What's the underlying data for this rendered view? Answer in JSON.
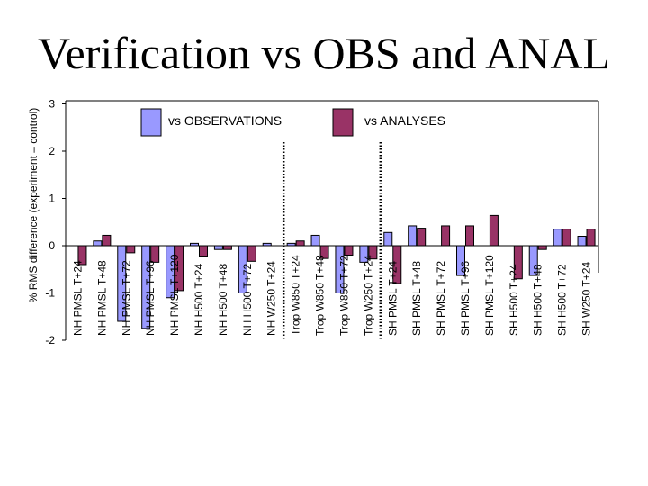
{
  "title": "Verification vs OBS and ANAL",
  "chart_data": {
    "type": "bar",
    "title": "Verification vs OBS and ANAL",
    "ylabel": "% RMS difference (experiment – control)",
    "xlabel": "",
    "ylim": [
      -2,
      3
    ],
    "yticks": [
      "3",
      "2",
      "1",
      "0",
      "-1",
      "-2"
    ],
    "grid": false,
    "legend_position": "top",
    "categories": [
      "NH PMSL T+24",
      "NH PMSL T+48",
      "NH PMSL T+72",
      "NH PMSL T+96",
      "NH PMSL T+120",
      "NH H500 T+24",
      "NH H500 T+48",
      "NH H500 T+72",
      "NH W250 T+24",
      "Trop W850 T+24",
      "Trop W850 T+48",
      "Trop W850 T+72",
      "Trop W250 T+24",
      "SH PMSL T+24",
      "SH PMSL T+48",
      "SH PMSL T+72",
      "SH PMSL T+96",
      "SH PMSL T+120",
      "SH H500 T+24",
      "SH H500 T+48",
      "SH H500 T+72",
      "SH W250 T+24"
    ],
    "series": [
      {
        "name": "vs OBSERVATIONS",
        "color": "#9999ff",
        "values": [
          0.0,
          0.1,
          -1.6,
          -1.75,
          -1.1,
          0.05,
          -0.08,
          -1.0,
          0.05,
          0.05,
          0.22,
          -1.0,
          -0.35,
          0.28,
          0.42,
          0.0,
          -0.63,
          0.0,
          0.0,
          -0.63,
          0.35,
          0.2
        ]
      },
      {
        "name": "vs ANALYSES",
        "color": "#993366",
        "values": [
          -0.4,
          0.22,
          -0.15,
          -0.35,
          -0.95,
          -0.22,
          -0.08,
          -0.33,
          0.0,
          0.1,
          -0.27,
          -0.2,
          -0.28,
          -0.8,
          0.37,
          0.42,
          0.42,
          0.64,
          -0.7,
          -0.08,
          0.35,
          0.35
        ]
      }
    ],
    "separators_after_index": [
      8,
      12
    ]
  }
}
